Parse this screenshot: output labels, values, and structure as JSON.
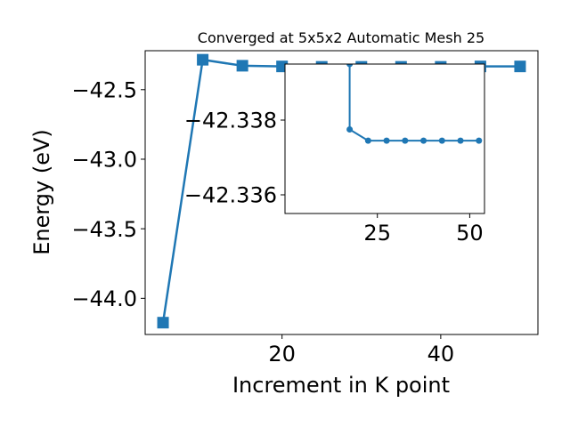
{
  "chart_data": [
    {
      "type": "line",
      "title": "Converged at 5x5x2 Automatic Mesh 25",
      "xlabel": "Increment in K point",
      "ylabel": "Energy (eV)",
      "xlim": [
        2.75,
        52.25
      ],
      "ylim": [
        -44.26,
        -42.22
      ],
      "xticks": [
        20,
        40
      ],
      "yticks": [
        -44.0,
        -43.5,
        -43.0,
        -42.5
      ],
      "xtick_labels": [
        "20",
        "40"
      ],
      "ytick_labels": [
        "−44.0",
        "−43.5",
        "−43.0",
        "−42.5"
      ],
      "marker": "square",
      "color": "#1f77b4",
      "grid": false,
      "series": [
        {
          "x": [
            5,
            10,
            15,
            20,
            25,
            30,
            35,
            40,
            45,
            50
          ],
          "y": [
            -44.175,
            -42.285,
            -42.328,
            -42.333,
            -42.3362,
            -42.3362,
            -42.3362,
            -42.3362,
            -42.333,
            -42.333
          ]
        }
      ]
    },
    {
      "type": "line",
      "title": "",
      "xlabel": "",
      "ylabel": "",
      "xlim": [
        0,
        54
      ],
      "ylim": [
        -42.3355,
        -42.3395
      ],
      "xticks": [
        25,
        50
      ],
      "yticks": [
        -42.338,
        -42.336
      ],
      "xtick_labels": [
        "25",
        "50"
      ],
      "ytick_labels": [
        "−42.338",
        "−42.336"
      ],
      "marker": "circle",
      "color": "#1f77b4",
      "grid": false,
      "series": [
        {
          "x": [
            17.5,
            17.5,
            22.5,
            27.5,
            32.5,
            37.5,
            42.5,
            47.5,
            52.5
          ],
          "y": [
            -42.3395,
            -42.33775,
            -42.33745,
            -42.33745,
            -42.33745,
            -42.33745,
            -42.33745,
            -42.33745,
            -42.33745
          ]
        }
      ]
    }
  ]
}
